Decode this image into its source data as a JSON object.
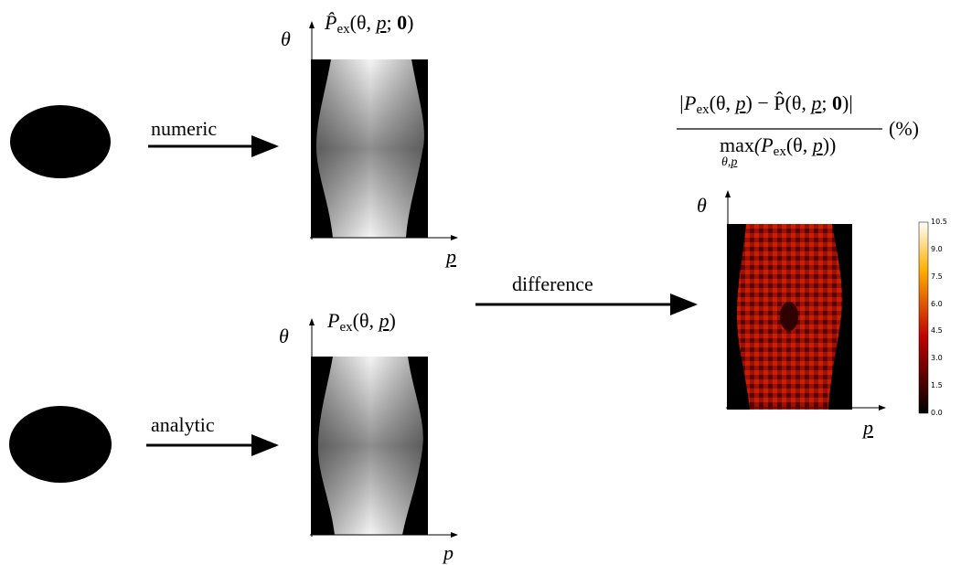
{
  "numeric_arrow": "numeric",
  "analytic_arrow": "analytic",
  "difference_arrow": "difference",
  "top_sinogram": {
    "label": [
      "P̂",
      "ex",
      "(θ, ",
      "p",
      "; ",
      "0",
      ")"
    ],
    "y_axis": "θ",
    "x_axis": "p"
  },
  "bottom_sinogram": {
    "label": [
      "P",
      "ex",
      "(θ, ",
      "p",
      ")"
    ],
    "y_axis": "θ",
    "x_axis": "p"
  },
  "error_map": {
    "numerator": [
      "|P",
      "ex",
      "(θ, ",
      "p",
      ") − P̂(θ, ",
      "p",
      "; ",
      "0",
      ")|"
    ],
    "denominator": [
      "max",
      "θ,",
      "p",
      "(P",
      "ex",
      "(θ, ",
      "p",
      "))"
    ],
    "unit": "(%)",
    "y_axis": "θ",
    "x_axis": "p",
    "colorbar_ticks": [
      "0.0",
      "1.5",
      "3.0",
      "4.5",
      "6.0",
      "7.5",
      "9.0",
      "10.5"
    ]
  }
}
